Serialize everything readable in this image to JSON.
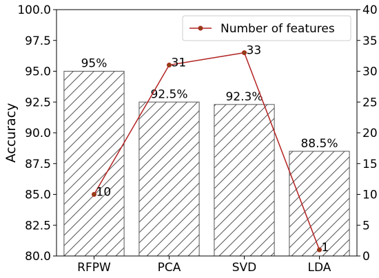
{
  "chart_data": {
    "type": "bar",
    "categories": [
      "RFPW",
      "PCA",
      "SVD",
      "LDA"
    ],
    "bar_series": {
      "values": [
        95,
        92.5,
        92.3,
        88.5
      ],
      "labels": [
        "95%",
        "92.5%",
        "92.3%",
        "88.5%"
      ],
      "fill": "#ffffff",
      "edge_color": "#555555",
      "hatch": "diagonal"
    },
    "line_series": {
      "name": "Number of features",
      "values": [
        10,
        31,
        33,
        1
      ],
      "labels": [
        "10",
        "31",
        "33",
        "1"
      ],
      "color": "#b22222",
      "marker_color": "#8b4513"
    },
    "ylabel": "Accuracy",
    "ylim": [
      80,
      100
    ],
    "yticks": [
      "80.0",
      "82.5",
      "85.0",
      "87.5",
      "90.0",
      "92.5",
      "95.0",
      "97.5",
      "100.0"
    ],
    "y2lim": [
      0,
      40
    ],
    "y2ticks": [
      "0",
      "5",
      "10",
      "15",
      "20",
      "25",
      "30",
      "35",
      "40"
    ],
    "grid": false,
    "legend_position": "top-right"
  }
}
